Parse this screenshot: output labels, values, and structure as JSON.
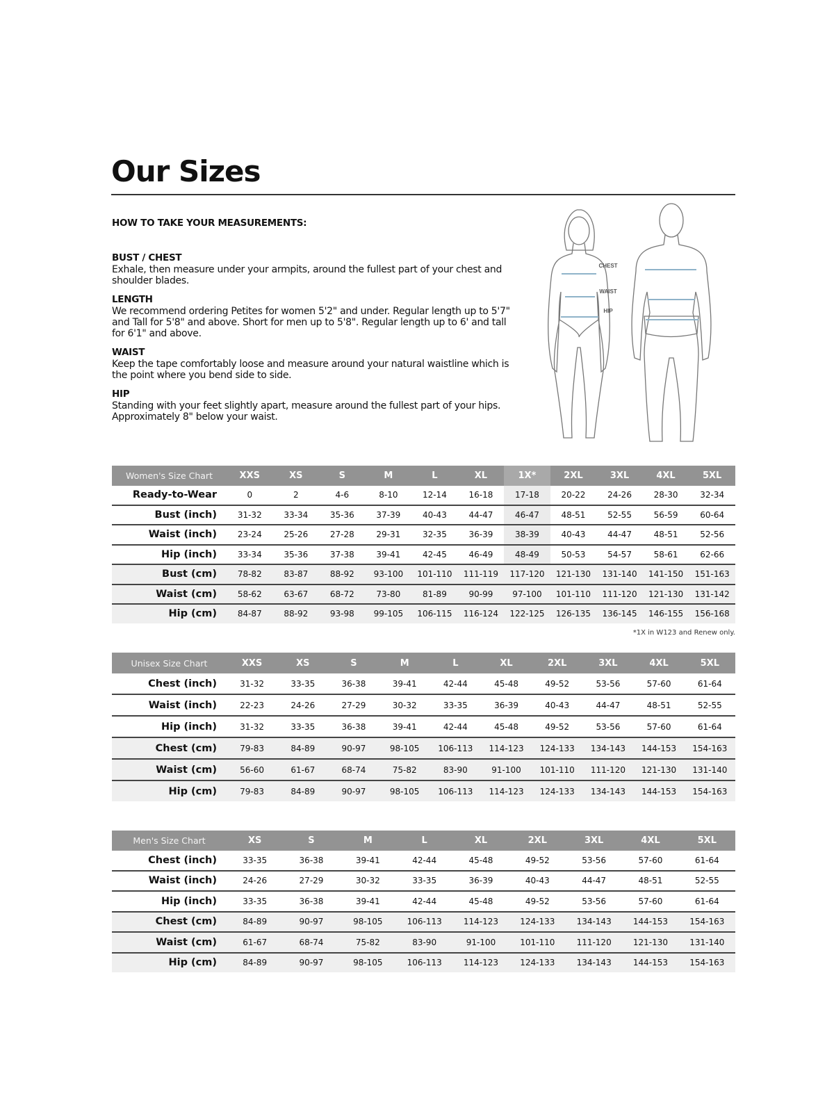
{
  "title": "Our Sizes",
  "instructions": {
    "heading": "HOW TO TAKE YOUR MEASUREMENTS:",
    "sections": [
      {
        "title": "BUST / CHEST",
        "text": "Exhale, then measure under your armpits, around the fullest part of your chest and shoulder blades."
      },
      {
        "title": "LENGTH",
        "text": "We recommend ordering Petites for women 5'2\" and under. Regular length up to 5'7\" and Tall for 5'8\" and above. Short for men up to 5'8\". Regular length up to 6' and tall for 6'1\" and above."
      },
      {
        "title": "WAIST",
        "text": "Keep the tape comfortably loose and measure around your natural waistline which is the point where you bend side to side."
      },
      {
        "title": "HIP",
        "text": "Standing with your feet slightly apart, measure around the fullest part of your hips. Approximately 8\" below your waist."
      }
    ]
  },
  "figure": {
    "labels": [
      "CHEST",
      "WAIST",
      "HIP"
    ],
    "line_color": "#8fb3c9"
  },
  "tables": {
    "women": {
      "title": "Women's Size Chart",
      "highlight_column": "1X*",
      "sizes": [
        "XXS",
        "XS",
        "S",
        "M",
        "L",
        "XL",
        "1X*",
        "2XL",
        "3XL",
        "4XL",
        "5XL"
      ],
      "rows": [
        {
          "label": "Ready-to-Wear",
          "values": [
            "0",
            "2",
            "4-6",
            "8-10",
            "12-14",
            "16-18",
            "17-18",
            "20-22",
            "24-26",
            "28-30",
            "32-34"
          ]
        },
        {
          "label": "Bust (inch)",
          "values": [
            "31-32",
            "33-34",
            "35-36",
            "37-39",
            "40-43",
            "44-47",
            "46-47",
            "48-51",
            "52-55",
            "56-59",
            "60-64"
          ]
        },
        {
          "label": "Waist (inch)",
          "values": [
            "23-24",
            "25-26",
            "27-28",
            "29-31",
            "32-35",
            "36-39",
            "38-39",
            "40-43",
            "44-47",
            "48-51",
            "52-56"
          ]
        },
        {
          "label": "Hip (inch)",
          "values": [
            "33-34",
            "35-36",
            "37-38",
            "39-41",
            "42-45",
            "46-49",
            "48-49",
            "50-53",
            "54-57",
            "58-61",
            "62-66"
          ]
        },
        {
          "label": "Bust (cm)",
          "values": [
            "78-82",
            "83-87",
            "88-92",
            "93-100",
            "101-110",
            "111-119",
            "117-120",
            "121-130",
            "131-140",
            "141-150",
            "151-163"
          ]
        },
        {
          "label": "Waist (cm)",
          "values": [
            "58-62",
            "63-67",
            "68-72",
            "73-80",
            "81-89",
            "90-99",
            "97-100",
            "101-110",
            "111-120",
            "121-130",
            "131-142"
          ]
        },
        {
          "label": "Hip (cm)",
          "values": [
            "84-87",
            "88-92",
            "93-98",
            "99-105",
            "106-115",
            "116-124",
            "122-125",
            "126-135",
            "136-145",
            "146-155",
            "156-168"
          ]
        }
      ],
      "footnote": "*1X in W123 and Renew only."
    },
    "unisex": {
      "title": "Unisex Size Chart",
      "sizes": [
        "XXS",
        "XS",
        "S",
        "M",
        "L",
        "XL",
        "2XL",
        "3XL",
        "4XL",
        "5XL"
      ],
      "rows": [
        {
          "label": "Chest (inch)",
          "values": [
            "31-32",
            "33-35",
            "36-38",
            "39-41",
            "42-44",
            "45-48",
            "49-52",
            "53-56",
            "57-60",
            "61-64"
          ]
        },
        {
          "label": "Waist (inch)",
          "values": [
            "22-23",
            "24-26",
            "27-29",
            "30-32",
            "33-35",
            "36-39",
            "40-43",
            "44-47",
            "48-51",
            "52-55"
          ]
        },
        {
          "label": "Hip (inch)",
          "values": [
            "31-32",
            "33-35",
            "36-38",
            "39-41",
            "42-44",
            "45-48",
            "49-52",
            "53-56",
            "57-60",
            "61-64"
          ]
        },
        {
          "label": "Chest (cm)",
          "values": [
            "79-83",
            "84-89",
            "90-97",
            "98-105",
            "106-113",
            "114-123",
            "124-133",
            "134-143",
            "144-153",
            "154-163"
          ]
        },
        {
          "label": "Waist (cm)",
          "values": [
            "56-60",
            "61-67",
            "68-74",
            "75-82",
            "83-90",
            "91-100",
            "101-110",
            "111-120",
            "121-130",
            "131-140"
          ]
        },
        {
          "label": "Hip (cm)",
          "values": [
            "79-83",
            "84-89",
            "90-97",
            "98-105",
            "106-113",
            "114-123",
            "124-133",
            "134-143",
            "144-153",
            "154-163"
          ]
        }
      ]
    },
    "men": {
      "title": "Men's Size Chart",
      "sizes": [
        "XS",
        "S",
        "M",
        "L",
        "XL",
        "2XL",
        "3XL",
        "4XL",
        "5XL"
      ],
      "rows": [
        {
          "label": "Chest (inch)",
          "values": [
            "33-35",
            "36-38",
            "39-41",
            "42-44",
            "45-48",
            "49-52",
            "53-56",
            "57-60",
            "61-64"
          ]
        },
        {
          "label": "Waist (inch)",
          "values": [
            "24-26",
            "27-29",
            "30-32",
            "33-35",
            "36-39",
            "40-43",
            "44-47",
            "48-51",
            "52-55"
          ]
        },
        {
          "label": "Hip (inch)",
          "values": [
            "33-35",
            "36-38",
            "39-41",
            "42-44",
            "45-48",
            "49-52",
            "53-56",
            "57-60",
            "61-64"
          ]
        },
        {
          "label": "Chest (cm)",
          "values": [
            "84-89",
            "90-97",
            "98-105",
            "106-113",
            "114-123",
            "124-133",
            "134-143",
            "144-153",
            "154-163"
          ]
        },
        {
          "label": "Waist (cm)",
          "values": [
            "61-67",
            "68-74",
            "75-82",
            "83-90",
            "91-100",
            "101-110",
            "111-120",
            "121-130",
            "131-140"
          ]
        },
        {
          "label": "Hip (cm)",
          "values": [
            "84-89",
            "90-97",
            "98-105",
            "106-113",
            "114-123",
            "124-133",
            "134-143",
            "144-153",
            "154-163"
          ]
        }
      ]
    }
  }
}
